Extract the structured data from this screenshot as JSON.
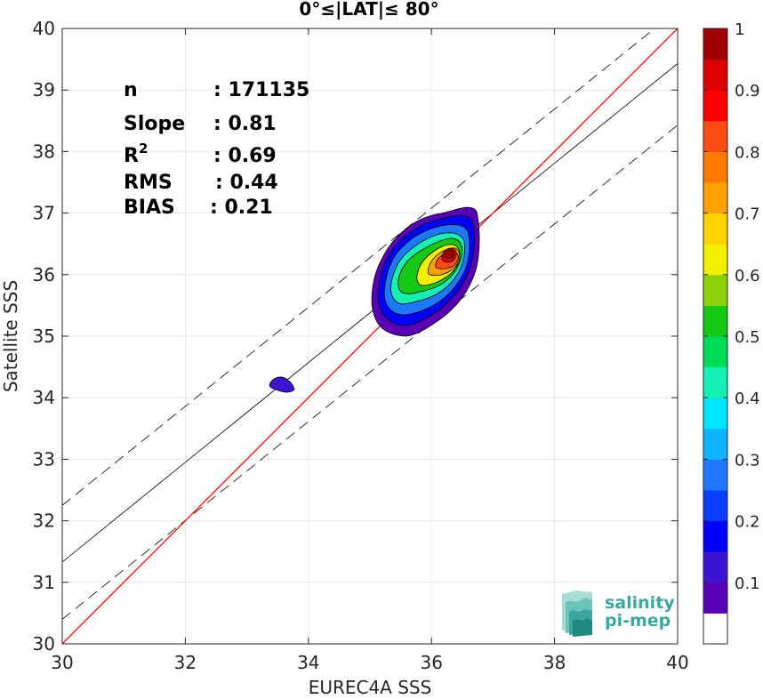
{
  "chart_data": {
    "type": "scatter",
    "title": "0°≤|LAT|≤ 80°",
    "xlabel": "EUREC4A SSS",
    "ylabel": "Satellite SSS",
    "xlim": [
      30,
      40
    ],
    "ylim": [
      30,
      40
    ],
    "xticks": [
      "30",
      "32",
      "34",
      "36",
      "38",
      "40"
    ],
    "yticks": [
      "30",
      "31",
      "32",
      "33",
      "34",
      "35",
      "36",
      "37",
      "38",
      "39",
      "40"
    ],
    "grid": true,
    "stats": [
      {
        "label": "n",
        "value": ": 171135"
      },
      {
        "label": "Slope",
        "value": ": 0.81"
      },
      {
        "label": "R",
        "sup": "2",
        "value": ": 0.69"
      },
      {
        "label": "RMS",
        "value": ": 0.44"
      },
      {
        "label": "BIAS",
        "value": ": 0.21"
      }
    ],
    "lines": {
      "identity": {
        "slope": 1,
        "intercept": 0,
        "color": "#ff0000"
      },
      "regression": {
        "slope": 0.81,
        "intercept_at_30": 31.33,
        "color": "#000000"
      },
      "upper_envelope": {
        "y_at_30": 32.25,
        "y_at_40": 40.3
      },
      "lower_envelope": {
        "y_at_30": 30.4,
        "y_at_40": 38.43
      }
    },
    "density_blobs": [
      {
        "name": "main",
        "center": [
          36.0,
          36.0
        ]
      },
      {
        "name": "minor",
        "center": [
          33.6,
          34.15
        ]
      }
    ],
    "colorbar": {
      "ticks": [
        "0.1",
        "0.2",
        "0.3",
        "0.4",
        "0.5",
        "0.6",
        "0.7",
        "0.8",
        "0.9",
        "1"
      ],
      "range": [
        0,
        1
      ],
      "colors": [
        "#ffffff",
        "#5a00b4",
        "#3c14d2",
        "#0000ff",
        "#0a3cff",
        "#1e78ff",
        "#0fb4ff",
        "#00e6ff",
        "#14f0b4",
        "#00dc5a",
        "#14c814",
        "#8cd20a",
        "#f0f000",
        "#ffd200",
        "#ffa000",
        "#ff7800",
        "#ff4b14",
        "#ff0000",
        "#dc0000",
        "#a00000"
      ]
    },
    "logo": {
      "line1": "salinity",
      "line2": "pi-mep"
    }
  }
}
